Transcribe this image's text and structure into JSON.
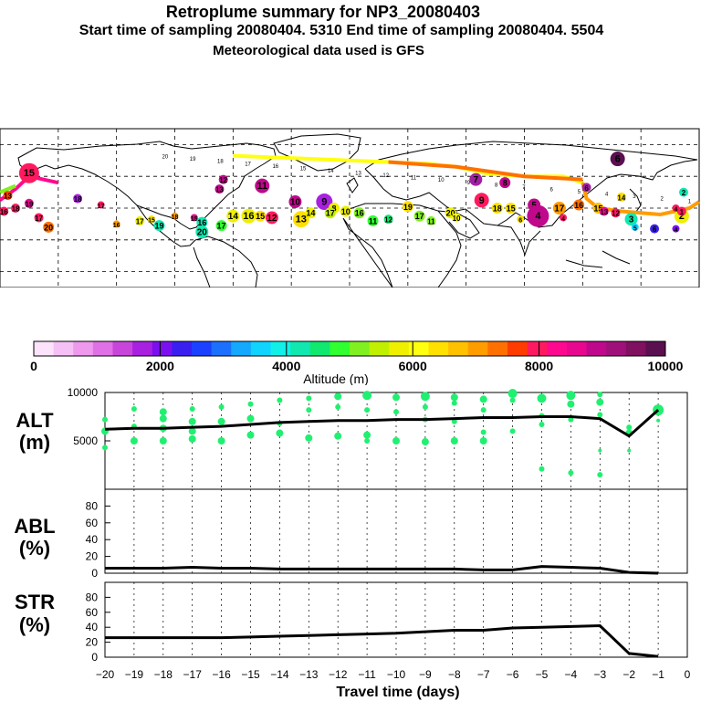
{
  "titles": {
    "line1": "Retroplume summary for NP3_20080403",
    "line2": "Start time of sampling 20080404.  5310     End time of sampling 20080404.  5504",
    "line3": "Meteorological data used is GFS"
  },
  "colorbar": {
    "tick_labels": [
      "0",
      "2000",
      "4000",
      "6000",
      "8000",
      "10000"
    ],
    "label": "Altitude  (m)",
    "colors": [
      "#fbe3fb",
      "#f5c0f5",
      "#ee98ee",
      "#e070e6",
      "#c845dc",
      "#a820e0",
      "#7a10f0",
      "#3a20f0",
      "#1c40ff",
      "#1c70ff",
      "#14a8ff",
      "#10d4ff",
      "#10f0e8",
      "#10e8b0",
      "#10e870",
      "#30ff30",
      "#80f020",
      "#c0f000",
      "#eef000",
      "#ffff10",
      "#ffe000",
      "#ffc000",
      "#ff9c00",
      "#ff7000",
      "#ff3c00",
      "#ff1a60",
      "#ff0890",
      "#e80890",
      "#c0088c",
      "#a0107a",
      "#801060",
      "#5a1050"
    ]
  },
  "map": {
    "track_labels": [
      "20",
      "19",
      "18",
      "17",
      "16",
      "15",
      "14",
      "13",
      "12",
      "11",
      "10",
      "9",
      "8",
      "7",
      "6",
      "5",
      "4",
      "3",
      "2",
      "1"
    ],
    "markers": [
      {
        "label": "15",
        "color": "#ff1a60",
        "lon": -165,
        "lat": 62,
        "size": 11
      },
      {
        "label": "13",
        "color": "#ff3c00",
        "lon": -176,
        "lat": 48,
        "size": 5
      },
      {
        "label": "16",
        "color": "#ff1a60",
        "lon": -178,
        "lat": 38,
        "size": 5
      },
      {
        "label": "18",
        "color": "#ff1a60",
        "lon": -172,
        "lat": 40,
        "size": 5
      },
      {
        "label": "19",
        "color": "#e80890",
        "lon": -165,
        "lat": 43,
        "size": 5
      },
      {
        "label": "17",
        "color": "#ff1a60",
        "lon": -160,
        "lat": 34,
        "size": 5
      },
      {
        "label": "20",
        "color": "#ff7000",
        "lon": -155,
        "lat": 28,
        "size": 6
      },
      {
        "label": "18",
        "color": "#a820e0",
        "lon": -140,
        "lat": 46,
        "size": 5
      },
      {
        "label": "17",
        "color": "#ff1a60",
        "lon": -128,
        "lat": 42,
        "size": 4
      },
      {
        "label": "16",
        "color": "#ff9c00",
        "lon": -120,
        "lat": 30,
        "size": 4
      },
      {
        "label": "17",
        "color": "#eef000",
        "lon": -108,
        "lat": 32,
        "size": 5
      },
      {
        "label": "15",
        "color": "#ffe000",
        "lon": -102,
        "lat": 33,
        "size": 4
      },
      {
        "label": "19",
        "color": "#10e8b0",
        "lon": -98,
        "lat": 29,
        "size": 6
      },
      {
        "label": "18",
        "color": "#ff9c00",
        "lon": -90,
        "lat": 35,
        "size": 4
      },
      {
        "label": "15",
        "color": "#e80890",
        "lon": -80,
        "lat": 34,
        "size": 4
      },
      {
        "label": "16",
        "color": "#10e8b0",
        "lon": -76,
        "lat": 31,
        "size": 6
      },
      {
        "label": "20",
        "color": "#10e8b0",
        "lon": -76,
        "lat": 25,
        "size": 7
      },
      {
        "label": "17",
        "color": "#30ff30",
        "lon": -66,
        "lat": 29,
        "size": 6
      },
      {
        "label": "14",
        "color": "#eef000",
        "lon": -60,
        "lat": 35,
        "size": 7
      },
      {
        "label": "16",
        "color": "#eef000",
        "lon": -52,
        "lat": 35,
        "size": 8
      },
      {
        "label": "15",
        "color": "#ffe000",
        "lon": -46,
        "lat": 35,
        "size": 6
      },
      {
        "label": "12",
        "color": "#ff1a60",
        "lon": -40,
        "lat": 34,
        "size": 7
      },
      {
        "label": "12",
        "color": "#c0088c",
        "lon": -65,
        "lat": 58,
        "size": 5
      },
      {
        "label": "13",
        "color": "#c0088c",
        "lon": -67,
        "lat": 52,
        "size": 5
      },
      {
        "label": "11",
        "color": "#c0088c",
        "lon": -45,
        "lat": 54,
        "size": 8
      },
      {
        "label": "10",
        "color": "#c0088c",
        "lon": -28,
        "lat": 44,
        "size": 7
      },
      {
        "label": "9",
        "color": "#a820e0",
        "lon": -13,
        "lat": 44,
        "size": 9
      },
      {
        "label": "13",
        "color": "#ffe000",
        "lon": -25,
        "lat": 33,
        "size": 9
      },
      {
        "label": "14",
        "color": "#eef000",
        "lon": -20,
        "lat": 37,
        "size": 6
      },
      {
        "label": "8",
        "color": "#eef000",
        "lon": -8,
        "lat": 40,
        "size": 6
      },
      {
        "label": "17",
        "color": "#c0f000",
        "lon": -10,
        "lat": 37,
        "size": 6
      },
      {
        "label": "10",
        "color": "#eef000",
        "lon": -2,
        "lat": 38,
        "size": 6
      },
      {
        "label": "16",
        "color": "#80f020",
        "lon": 5,
        "lat": 37,
        "size": 6
      },
      {
        "label": "11",
        "color": "#30ff30",
        "lon": 12,
        "lat": 32,
        "size": 6
      },
      {
        "label": "12",
        "color": "#10e870",
        "lon": 20,
        "lat": 33,
        "size": 5
      },
      {
        "label": "19",
        "color": "#ffe000",
        "lon": 30,
        "lat": 41,
        "size": 6
      },
      {
        "label": "17",
        "color": "#80f020",
        "lon": 36,
        "lat": 35,
        "size": 6
      },
      {
        "label": "11",
        "color": "#80f020",
        "lon": 42,
        "lat": 32,
        "size": 5
      },
      {
        "label": "20",
        "color": "#eef000",
        "lon": 52,
        "lat": 37,
        "size": 6
      },
      {
        "label": "10",
        "color": "#ffff10",
        "lon": 55,
        "lat": 34,
        "size": 5
      },
      {
        "label": "9",
        "color": "#ff1a60",
        "lon": 68,
        "lat": 45,
        "size": 8
      },
      {
        "label": "8",
        "color": "#c0088c",
        "lon": 80,
        "lat": 56,
        "size": 6
      },
      {
        "label": "7",
        "color": "#a020a0",
        "lon": 65,
        "lat": 58,
        "size": 7
      },
      {
        "label": "18",
        "color": "#ffe000",
        "lon": 76,
        "lat": 40,
        "size": 6
      },
      {
        "label": "15",
        "color": "#ffe000",
        "lon": 83,
        "lat": 40,
        "size": 6
      },
      {
        "label": "6",
        "color": "#ffe000",
        "lon": 88,
        "lat": 33,
        "size": 4
      },
      {
        "label": "5",
        "color": "#c0088c",
        "lon": 95,
        "lat": 42,
        "size": 7
      },
      {
        "label": "4",
        "color": "#c0088c",
        "lon": 97,
        "lat": 35,
        "size": 12
      },
      {
        "label": "17",
        "color": "#ff9c00",
        "lon": 108,
        "lat": 40,
        "size": 7
      },
      {
        "label": "4",
        "color": "#ff1a60",
        "lon": 110,
        "lat": 34,
        "size": 4
      },
      {
        "label": "16",
        "color": "#ff7000",
        "lon": 118,
        "lat": 42,
        "size": 6
      },
      {
        "label": "6",
        "color": "#a020a0",
        "lon": 122,
        "lat": 53,
        "size": 5
      },
      {
        "label": "15",
        "color": "#ffc000",
        "lon": 128,
        "lat": 40,
        "size": 6
      },
      {
        "label": "6",
        "color": "#5a1050",
        "lon": 138,
        "lat": 71,
        "size": 8
      },
      {
        "label": "14",
        "color": "#ffe000",
        "lon": 140,
        "lat": 47,
        "size": 5
      },
      {
        "label": "12",
        "color": "#ff1a60",
        "lon": 137,
        "lat": 37,
        "size": 5
      },
      {
        "label": "13",
        "color": "#e80890",
        "lon": 131,
        "lat": 38,
        "size": 5
      },
      {
        "label": "3",
        "color": "#10e8b0",
        "lon": 145,
        "lat": 33,
        "size": 7
      },
      {
        "label": "5",
        "color": "#10d4ff",
        "lon": 147,
        "lat": 28,
        "size": 4
      },
      {
        "label": "6",
        "color": "#3a20f0",
        "lon": 157,
        "lat": 27,
        "size": 5
      },
      {
        "label": "4",
        "color": "#7a10f0",
        "lon": 168,
        "lat": 27,
        "size": 4
      },
      {
        "label": "2",
        "color": "#eef000",
        "lon": 171,
        "lat": 35,
        "size": 8
      },
      {
        "label": "2",
        "color": "#10e8b0",
        "lon": 172,
        "lat": 50,
        "size": 5
      },
      {
        "label": "1",
        "color": "#ff1a60",
        "lon": 171,
        "lat": 38,
        "size": 5
      },
      {
        "label": "4",
        "color": "#ff1a60",
        "lon": 168,
        "lat": 40,
        "size": 4
      }
    ]
  },
  "chart_data": [
    {
      "type": "line",
      "title": "ALT (m)",
      "ylabel": "ALT (m)",
      "xlabel": "Travel time (days)",
      "ylim": [
        0,
        10000
      ],
      "xlim": [
        -20,
        0
      ],
      "ytick_labels": [
        "10000",
        "5000"
      ],
      "series": [
        {
          "name": "mean altitude",
          "x": [
            -20,
            -19,
            -18,
            -17,
            -16,
            -15,
            -14,
            -13,
            -12,
            -11,
            -10,
            -9,
            -8,
            -7,
            -6,
            -5,
            -4,
            -3,
            -2,
            -1
          ],
          "values": [
            6200,
            6300,
            6300,
            6400,
            6500,
            6700,
            6900,
            7000,
            7100,
            7100,
            7200,
            7200,
            7300,
            7400,
            7400,
            7500,
            7500,
            7300,
            5500,
            8200
          ]
        }
      ],
      "scatter": [
        {
          "x": -20,
          "y": 7200,
          "r": 3
        },
        {
          "x": -20,
          "y": 6000,
          "r": 4
        },
        {
          "x": -20,
          "y": 4300,
          "r": 3
        },
        {
          "x": -19,
          "y": 8300,
          "r": 3
        },
        {
          "x": -19,
          "y": 6500,
          "r": 3
        },
        {
          "x": -19,
          "y": 5000,
          "r": 4
        },
        {
          "x": -18,
          "y": 8000,
          "r": 4
        },
        {
          "x": -18,
          "y": 7300,
          "r": 4
        },
        {
          "x": -18,
          "y": 6300,
          "r": 4
        },
        {
          "x": -18,
          "y": 5000,
          "r": 4
        },
        {
          "x": -17,
          "y": 8300,
          "r": 3
        },
        {
          "x": -17,
          "y": 7000,
          "r": 4
        },
        {
          "x": -17,
          "y": 6000,
          "r": 4
        },
        {
          "x": -17,
          "y": 5200,
          "r": 4
        },
        {
          "x": -16,
          "y": 8500,
          "r": 3
        },
        {
          "x": -16,
          "y": 7000,
          "r": 4
        },
        {
          "x": -16,
          "y": 5000,
          "r": 4
        },
        {
          "x": -15,
          "y": 8800,
          "r": 3
        },
        {
          "x": -15,
          "y": 7300,
          "r": 4
        },
        {
          "x": -15,
          "y": 5600,
          "r": 4
        },
        {
          "x": -14,
          "y": 9200,
          "r": 3
        },
        {
          "x": -14,
          "y": 6800,
          "r": 3
        },
        {
          "x": -14,
          "y": 5800,
          "r": 4
        },
        {
          "x": -13,
          "y": 9400,
          "r": 3
        },
        {
          "x": -13,
          "y": 8200,
          "r": 3
        },
        {
          "x": -13,
          "y": 5300,
          "r": 4
        },
        {
          "x": -12,
          "y": 9600,
          "r": 4
        },
        {
          "x": -12,
          "y": 8500,
          "r": 3
        },
        {
          "x": -12,
          "y": 5500,
          "r": 4
        },
        {
          "x": -11,
          "y": 9700,
          "r": 5
        },
        {
          "x": -11,
          "y": 8200,
          "r": 3
        },
        {
          "x": -11,
          "y": 5600,
          "r": 4
        },
        {
          "x": -11,
          "y": 5000,
          "r": 3
        },
        {
          "x": -10,
          "y": 9500,
          "r": 4
        },
        {
          "x": -10,
          "y": 8000,
          "r": 3
        },
        {
          "x": -10,
          "y": 5000,
          "r": 4
        },
        {
          "x": -9,
          "y": 9600,
          "r": 5
        },
        {
          "x": -9,
          "y": 8500,
          "r": 3
        },
        {
          "x": -9,
          "y": 7200,
          "r": 3
        },
        {
          "x": -9,
          "y": 4900,
          "r": 4
        },
        {
          "x": -8,
          "y": 9500,
          "r": 4
        },
        {
          "x": -8,
          "y": 8900,
          "r": 3
        },
        {
          "x": -8,
          "y": 7000,
          "r": 3
        },
        {
          "x": -8,
          "y": 5000,
          "r": 4
        },
        {
          "x": -7,
          "y": 9300,
          "r": 4
        },
        {
          "x": -7,
          "y": 8200,
          "r": 3
        },
        {
          "x": -7,
          "y": 5900,
          "r": 3
        },
        {
          "x": -7,
          "y": 5000,
          "r": 4
        },
        {
          "x": -6,
          "y": 9900,
          "r": 5
        },
        {
          "x": -6,
          "y": 9200,
          "r": 3
        },
        {
          "x": -6,
          "y": 6000,
          "r": 3
        },
        {
          "x": -5,
          "y": 9400,
          "r": 5
        },
        {
          "x": -5,
          "y": 7600,
          "r": 3
        },
        {
          "x": -5,
          "y": 6700,
          "r": 3
        },
        {
          "x": -5,
          "y": 2100,
          "r": 3
        },
        {
          "x": -4,
          "y": 9700,
          "r": 5
        },
        {
          "x": -4,
          "y": 8800,
          "r": 4
        },
        {
          "x": -4,
          "y": 7200,
          "r": 3
        },
        {
          "x": -4,
          "y": 1700,
          "r": 3
        },
        {
          "x": -3,
          "y": 9800,
          "r": 3
        },
        {
          "x": -3,
          "y": 9000,
          "r": 4
        },
        {
          "x": -3,
          "y": 7700,
          "r": 3
        },
        {
          "x": -3,
          "y": 4000,
          "r": 2
        },
        {
          "x": -3,
          "y": 1500,
          "r": 3
        },
        {
          "x": -2,
          "y": 6400,
          "r": 3
        },
        {
          "x": -2,
          "y": 5800,
          "r": 4
        },
        {
          "x": -2,
          "y": 4000,
          "r": 2
        },
        {
          "x": -1,
          "y": 8200,
          "r": 6
        },
        {
          "x": -1,
          "y": 7100,
          "r": 2
        }
      ]
    },
    {
      "type": "line",
      "title": "ABL (%)",
      "ylabel": "ABL (%)",
      "ylim": [
        0,
        100
      ],
      "xlim": [
        -20,
        0
      ],
      "ytick_labels": [
        "80",
        "60",
        "40",
        "20",
        "0"
      ],
      "series": [
        {
          "name": "ABL fraction",
          "x": [
            -20,
            -19,
            -18,
            -17,
            -16,
            -15,
            -14,
            -13,
            -12,
            -11,
            -10,
            -9,
            -8,
            -7,
            -6,
            -5,
            -4,
            -3,
            -2,
            -1
          ],
          "values": [
            6,
            6,
            6,
            7,
            6,
            6,
            5,
            5,
            5,
            5,
            5,
            5,
            5,
            4,
            4,
            8,
            7,
            6,
            1,
            0
          ]
        }
      ]
    },
    {
      "type": "line",
      "title": "STR (%)",
      "ylabel": "STR (%)",
      "xlabel": "Travel time (days)",
      "ylim": [
        0,
        100
      ],
      "xlim": [
        -20,
        0
      ],
      "ytick_labels": [
        "80",
        "60",
        "40",
        "20",
        "0"
      ],
      "xtick_labels": [
        "−20",
        "−19",
        "−18",
        "−17",
        "−16",
        "−15",
        "−14",
        "−13",
        "−12",
        "−11",
        "−10",
        "−9",
        "−8",
        "−7",
        "−6",
        "−5",
        "−4",
        "−3",
        "−2",
        "−1",
        "0"
      ],
      "series": [
        {
          "name": "stratosphere fraction",
          "x": [
            -20,
            -19,
            -18,
            -17,
            -16,
            -15,
            -14,
            -13,
            -12,
            -11,
            -10,
            -9,
            -8,
            -7,
            -6,
            -5,
            -4,
            -3,
            -2,
            -1
          ],
          "values": [
            26,
            26,
            26,
            26,
            26,
            27,
            28,
            29,
            30,
            31,
            32,
            34,
            36,
            36,
            39,
            40,
            41,
            42,
            5,
            1
          ]
        }
      ]
    }
  ]
}
